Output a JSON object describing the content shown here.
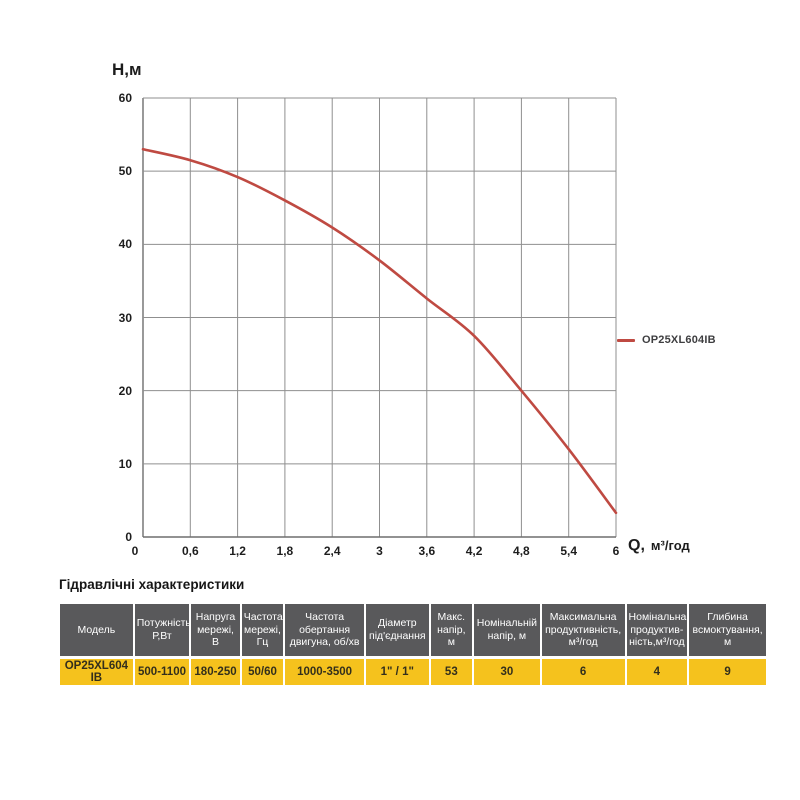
{
  "chart": {
    "y_axis_label": "H,м",
    "x_axis_label_q": "Q,",
    "x_axis_label_units": "м³/год",
    "legend": {
      "label": "OP25XL604IB"
    }
  },
  "chart_data": {
    "type": "line",
    "title": "",
    "xlabel": "Q, м³/год",
    "ylabel": "H, м",
    "x": [
      0,
      0.6,
      1.2,
      1.8,
      2.4,
      3,
      3.6,
      4.2,
      4.8,
      5.4,
      6
    ],
    "series": [
      {
        "name": "OP25XL604IB",
        "color": "#bf4a42",
        "values": [
          53,
          51.5,
          49.2,
          46,
          42.3,
          37.8,
          32.6,
          27.5,
          20,
          12,
          3.3
        ]
      }
    ],
    "x_tick_labels": [
      "0",
      "0,6",
      "1,2",
      "1,8",
      "2,4",
      "3",
      "3,6",
      "4,2",
      "4,8",
      "5,4",
      "6"
    ],
    "y_ticks": [
      0,
      10,
      20,
      30,
      40,
      50,
      60
    ],
    "xlim": [
      0,
      6
    ],
    "ylim": [
      0,
      60
    ],
    "grid": true,
    "grid_color": "#8f8f8f",
    "axis_color": "#6e6e6e",
    "legend_position": "right-of-plot"
  },
  "table": {
    "title": "Гідравлічні характеристики",
    "columns": [
      "Модель",
      "Потужність\nР,Вт",
      "Напруга\nмережі,\nВ",
      "Частота\nмережі,\nГц",
      "Частота\nобертання\nдвигуна, об/хв",
      "Діаметр\nпід'єднання",
      "Макс.\nнапір, м",
      "Номінальній\nнапір, м",
      "Максимальна\nпродуктивність,\nм³/год",
      "Номінальна\nпродуктив-\nність,м³/год",
      "Глибина\nвсмоктування,\nм"
    ],
    "rows": [
      [
        "OP25XL604 IB",
        "500-1100",
        "180-250",
        "50/60",
        "1000-3500",
        "1\" / 1\"",
        "53",
        "30",
        "6",
        "4",
        "9"
      ]
    ],
    "colors": {
      "header_bg": "#59595b",
      "header_text": "#ffffff",
      "row_bg": "#f5c21d",
      "row_text": "#332f1c"
    }
  }
}
